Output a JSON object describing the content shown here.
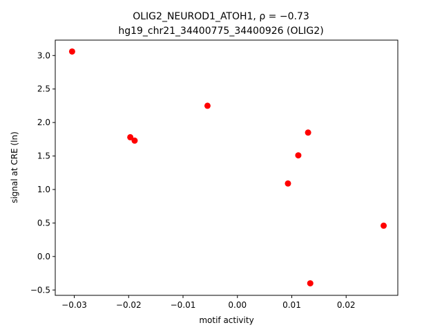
{
  "chart_data": {
    "type": "scatter",
    "title_line1": "OLIG2_NEUROD1_ATOH1, ρ = −0.73",
    "title_line2": "hg19_chr21_34400775_34400926 (OLIG2)",
    "xlabel": "motif activity",
    "ylabel": "signal at CRE (ln)",
    "xlim": [
      -0.0335,
      0.0295
    ],
    "ylim": [
      -0.58,
      3.23
    ],
    "x_ticks": [
      -0.03,
      -0.02,
      -0.01,
      0.0,
      0.01,
      0.02
    ],
    "x_tick_labels": [
      "−0.03",
      "−0.02",
      "−0.01",
      "0.00",
      "0.01",
      "0.02"
    ],
    "y_ticks": [
      -0.5,
      0.0,
      0.5,
      1.0,
      1.5,
      2.0,
      2.5,
      3.0
    ],
    "y_tick_labels": [
      "−0.5",
      "0.0",
      "0.5",
      "1.0",
      "1.5",
      "2.0",
      "2.5",
      "3.0"
    ],
    "grid": false,
    "marker_color": "#ff0000",
    "points": [
      {
        "x": -0.0304,
        "y": 3.06
      },
      {
        "x": -0.0055,
        "y": 2.25
      },
      {
        "x": -0.0197,
        "y": 1.78
      },
      {
        "x": -0.0189,
        "y": 1.73
      },
      {
        "x": 0.013,
        "y": 1.85
      },
      {
        "x": 0.0112,
        "y": 1.51
      },
      {
        "x": 0.0093,
        "y": 1.09
      },
      {
        "x": 0.0269,
        "y": 0.46
      },
      {
        "x": 0.0134,
        "y": -0.4
      }
    ]
  }
}
